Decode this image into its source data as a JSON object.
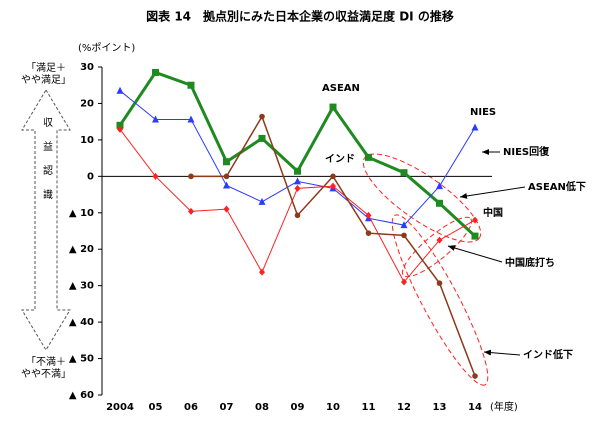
{
  "chart_data": {
    "type": "line",
    "title": "図表 14　拠点別にみた日本企業の収益満足度 DI の推移",
    "ylabel": "(%ポイント)",
    "xlabel": "(年度)",
    "categories": [
      "2004",
      "05",
      "06",
      "07",
      "08",
      "09",
      "10",
      "11",
      "12",
      "13",
      "14"
    ],
    "series": [
      {
        "name": "ASEAN",
        "color": "#1f8a1f",
        "marker": "square",
        "linewidth": 3,
        "values": [
          14,
          28.5,
          25,
          4,
          10.4,
          1.4,
          19,
          5.2,
          1,
          -7.4,
          -16.4
        ]
      },
      {
        "name": "NIES",
        "color": "#2a3cff",
        "marker": "triangle",
        "linewidth": 1,
        "values": [
          23.5,
          15.6,
          15.6,
          -2.5,
          -7,
          -1.4,
          -3.3,
          -11.5,
          -13.4,
          -2.7,
          13.4
        ]
      },
      {
        "name": "中国",
        "color": "#ff2020",
        "marker": "diamond",
        "linewidth": 1,
        "values": [
          12.9,
          0,
          -9.6,
          -9,
          -26.3,
          -3.3,
          -2.7,
          -10.7,
          -29,
          -17.5,
          -12
        ]
      },
      {
        "name": "インド",
        "color": "#8b3a1a",
        "marker": "circle",
        "linewidth": 1.5,
        "values": [
          null,
          null,
          0,
          0,
          16.4,
          -10.7,
          0,
          -15.6,
          -16.2,
          -29.3,
          -54.8
        ]
      }
    ],
    "ylim": [
      -60,
      30
    ],
    "yticks": [
      30,
      20,
      10,
      0,
      {
        "value": -10,
        "label": "▲ 10"
      },
      {
        "value": -20,
        "label": "▲ 20"
      },
      {
        "value": -30,
        "label": "▲ 30"
      },
      {
        "value": -40,
        "label": "▲ 40"
      },
      {
        "value": -50,
        "label": "▲ 50"
      },
      {
        "value": -60,
        "label": "▲ 60"
      }
    ],
    "annotations": [
      "NIES回復",
      "ASEAN低下",
      "中国底打ち",
      "インド低下"
    ],
    "side_labels": {
      "top": [
        "「満足＋",
        "やや満足」"
      ],
      "middle": "収益認識",
      "bottom": [
        "「不満＋",
        "やや不満」"
      ]
    }
  }
}
